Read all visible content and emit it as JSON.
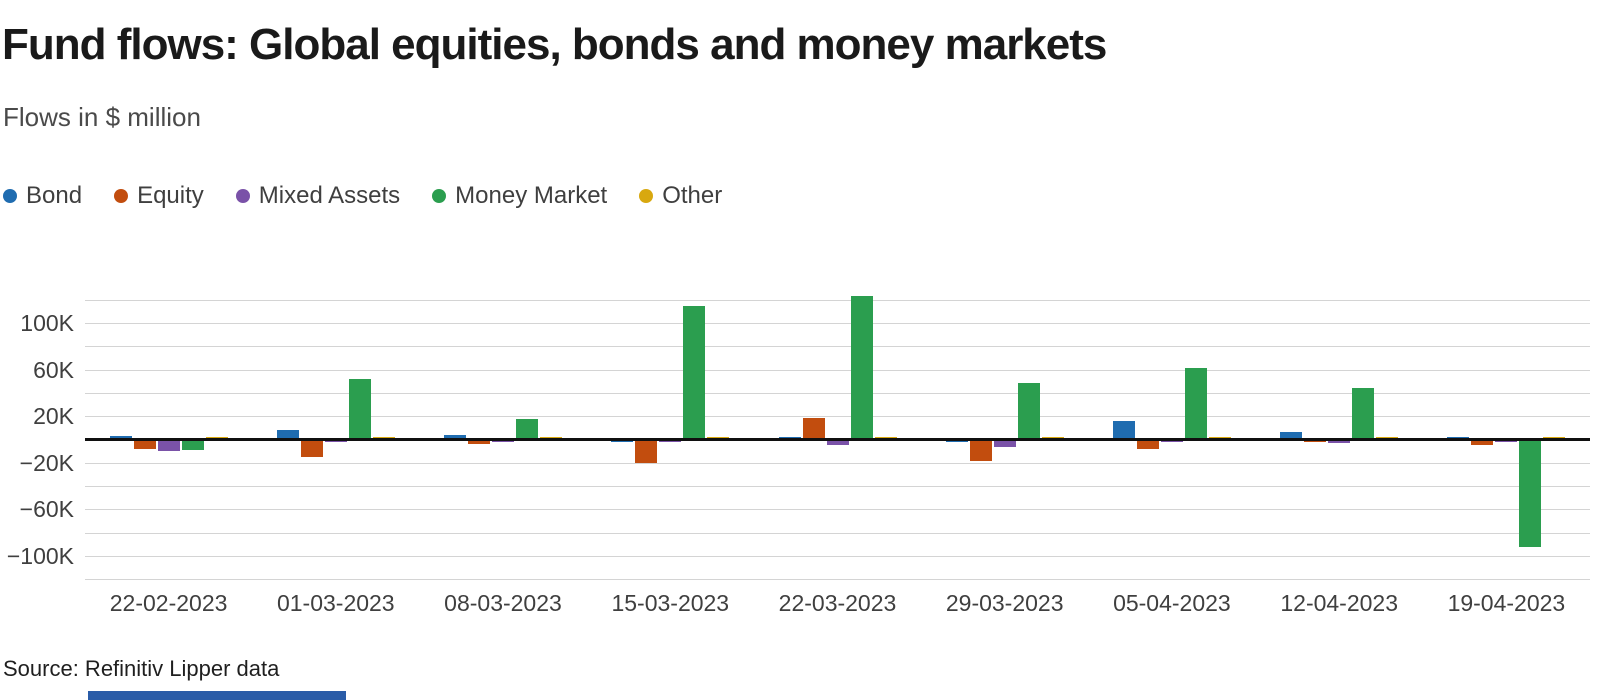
{
  "header": {
    "title": "Fund flows: Global equities, bonds and money markets",
    "subtitle": "Flows in $ million"
  },
  "footer": {
    "source": "Source: Refinitiv Lipper data"
  },
  "colors": {
    "grid": "#d4d4d4",
    "zero_line": "#101010",
    "tick_text": "#3f3f3f",
    "title_text": "#1a1a1a",
    "brand_bar": "#2a5ca8"
  },
  "chart_data": {
    "type": "bar",
    "title": "Fund flows: Global equities, bonds and money markets",
    "subtitle": "Flows in $ million",
    "xlabel": "",
    "ylabel": "Flows in $ million",
    "ylim": [
      -120000,
      120000
    ],
    "grid_interval": 20000,
    "grid": true,
    "legend_position": "top-left",
    "categories": [
      "22-02-2023",
      "01-03-2023",
      "08-03-2023",
      "15-03-2023",
      "22-03-2023",
      "29-03-2023",
      "05-04-2023",
      "12-04-2023",
      "19-04-2023"
    ],
    "series": [
      {
        "name": "Bond",
        "color": "#1f6cb0",
        "values": [
          2000,
          7000,
          2300,
          -1000,
          500,
          -300,
          15000,
          5000,
          300
        ]
      },
      {
        "name": "Equity",
        "color": "#c24d0e",
        "values": [
          -7000,
          -14000,
          -2900,
          -19000,
          17000,
          -17000,
          -7000,
          -300,
          -3000
        ]
      },
      {
        "name": "Mixed Assets",
        "color": "#7a52a8",
        "values": [
          -8500,
          -500,
          -400,
          -1200,
          -3000,
          -5000,
          -400,
          -1500,
          -300
        ]
      },
      {
        "name": "Money Market",
        "color": "#2b9e4f",
        "values": [
          -8000,
          51000,
          16000,
          113000,
          122000,
          47000,
          60000,
          43000,
          -91000
        ]
      },
      {
        "name": "Other",
        "color": "#d8a80f",
        "values": [
          200,
          300,
          200,
          300,
          250,
          1000,
          250,
          200,
          150
        ]
      }
    ],
    "yticks": [
      {
        "value": 100000,
        "label": "100K"
      },
      {
        "value": 60000,
        "label": "60K"
      },
      {
        "value": 20000,
        "label": "20K"
      },
      {
        "value": -20000,
        "label": "−20K"
      },
      {
        "value": -60000,
        "label": "−60K"
      },
      {
        "value": -100000,
        "label": "−100K"
      }
    ]
  }
}
